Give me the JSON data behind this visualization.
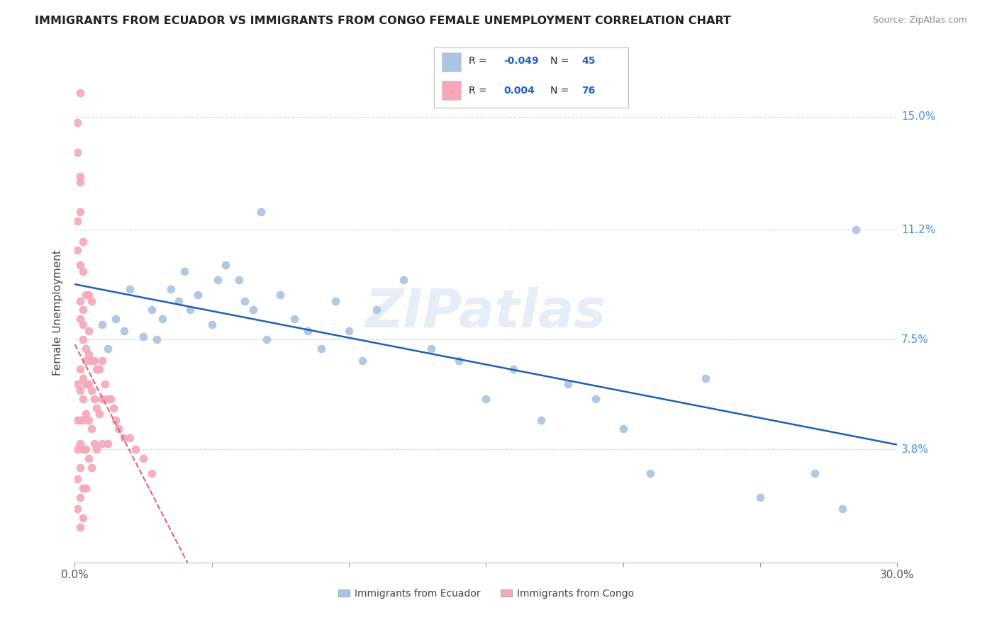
{
  "title": "IMMIGRANTS FROM ECUADOR VS IMMIGRANTS FROM CONGO FEMALE UNEMPLOYMENT CORRELATION CHART",
  "source": "Source: ZipAtlas.com",
  "ylabel": "Female Unemployment",
  "x_min": 0.0,
  "x_max": 0.3,
  "y_min": 0.0,
  "y_max": 0.168,
  "x_ticks": [
    0.0,
    0.05,
    0.1,
    0.15,
    0.2,
    0.25,
    0.3
  ],
  "x_tick_labels": [
    "0.0%",
    "",
    "",
    "",
    "",
    "",
    "30.0%"
  ],
  "y_tick_positions": [
    0.038,
    0.075,
    0.112,
    0.15
  ],
  "y_tick_labels": [
    "3.8%",
    "7.5%",
    "11.2%",
    "15.0%"
  ],
  "legend_labels": [
    "Immigrants from Ecuador",
    "Immigrants from Congo"
  ],
  "legend_r": [
    "-0.049",
    "0.004"
  ],
  "legend_n": [
    "45",
    "76"
  ],
  "ecuador_color": "#aac4e2",
  "congo_color": "#f4a8b8",
  "ecuador_line_color": "#2060b0",
  "congo_line_color": "#e06080",
  "watermark": "ZIPatlas",
  "grid_color": "#c8d8ea",
  "ecuador_x": [
    0.01,
    0.012,
    0.015,
    0.018,
    0.02,
    0.025,
    0.028,
    0.03,
    0.032,
    0.035,
    0.038,
    0.04,
    0.042,
    0.045,
    0.05,
    0.052,
    0.055,
    0.06,
    0.062,
    0.065,
    0.068,
    0.07,
    0.075,
    0.08,
    0.085,
    0.09,
    0.095,
    0.1,
    0.105,
    0.11,
    0.12,
    0.13,
    0.14,
    0.15,
    0.16,
    0.17,
    0.18,
    0.19,
    0.2,
    0.21,
    0.23,
    0.25,
    0.27,
    0.28,
    0.285
  ],
  "ecuador_y": [
    0.08,
    0.072,
    0.082,
    0.078,
    0.092,
    0.076,
    0.085,
    0.075,
    0.082,
    0.092,
    0.088,
    0.098,
    0.085,
    0.09,
    0.08,
    0.095,
    0.1,
    0.095,
    0.088,
    0.085,
    0.118,
    0.075,
    0.09,
    0.082,
    0.078,
    0.072,
    0.088,
    0.078,
    0.068,
    0.085,
    0.095,
    0.072,
    0.068,
    0.055,
    0.065,
    0.048,
    0.06,
    0.055,
    0.045,
    0.03,
    0.062,
    0.022,
    0.03,
    0.018,
    0.112
  ],
  "congo_x": [
    0.001,
    0.001,
    0.001,
    0.001,
    0.001,
    0.002,
    0.002,
    0.002,
    0.002,
    0.002,
    0.002,
    0.002,
    0.003,
    0.003,
    0.003,
    0.003,
    0.003,
    0.003,
    0.004,
    0.004,
    0.004,
    0.004,
    0.004,
    0.005,
    0.005,
    0.005,
    0.005,
    0.006,
    0.006,
    0.006,
    0.006,
    0.007,
    0.007,
    0.007,
    0.008,
    0.008,
    0.008,
    0.009,
    0.009,
    0.01,
    0.01,
    0.01,
    0.011,
    0.012,
    0.012,
    0.013,
    0.014,
    0.015,
    0.016,
    0.018,
    0.02,
    0.022,
    0.025,
    0.028,
    0.002,
    0.003,
    0.003,
    0.004,
    0.004,
    0.005,
    0.005,
    0.006,
    0.006,
    0.002,
    0.002,
    0.003,
    0.003,
    0.001,
    0.001,
    0.002,
    0.002,
    0.003,
    0.001,
    0.001,
    0.002,
    0.002
  ],
  "congo_y": [
    0.06,
    0.048,
    0.038,
    0.028,
    0.018,
    0.065,
    0.058,
    0.048,
    0.04,
    0.032,
    0.022,
    0.012,
    0.062,
    0.055,
    0.048,
    0.038,
    0.025,
    0.015,
    0.068,
    0.06,
    0.05,
    0.038,
    0.025,
    0.07,
    0.06,
    0.048,
    0.035,
    0.068,
    0.058,
    0.045,
    0.032,
    0.068,
    0.055,
    0.04,
    0.065,
    0.052,
    0.038,
    0.065,
    0.05,
    0.068,
    0.055,
    0.04,
    0.06,
    0.055,
    0.04,
    0.055,
    0.052,
    0.048,
    0.045,
    0.042,
    0.042,
    0.038,
    0.035,
    0.03,
    0.082,
    0.085,
    0.075,
    0.09,
    0.072,
    0.09,
    0.078,
    0.088,
    0.068,
    0.1,
    0.088,
    0.098,
    0.08,
    0.115,
    0.105,
    0.128,
    0.118,
    0.108,
    0.138,
    0.148,
    0.13,
    0.158
  ]
}
